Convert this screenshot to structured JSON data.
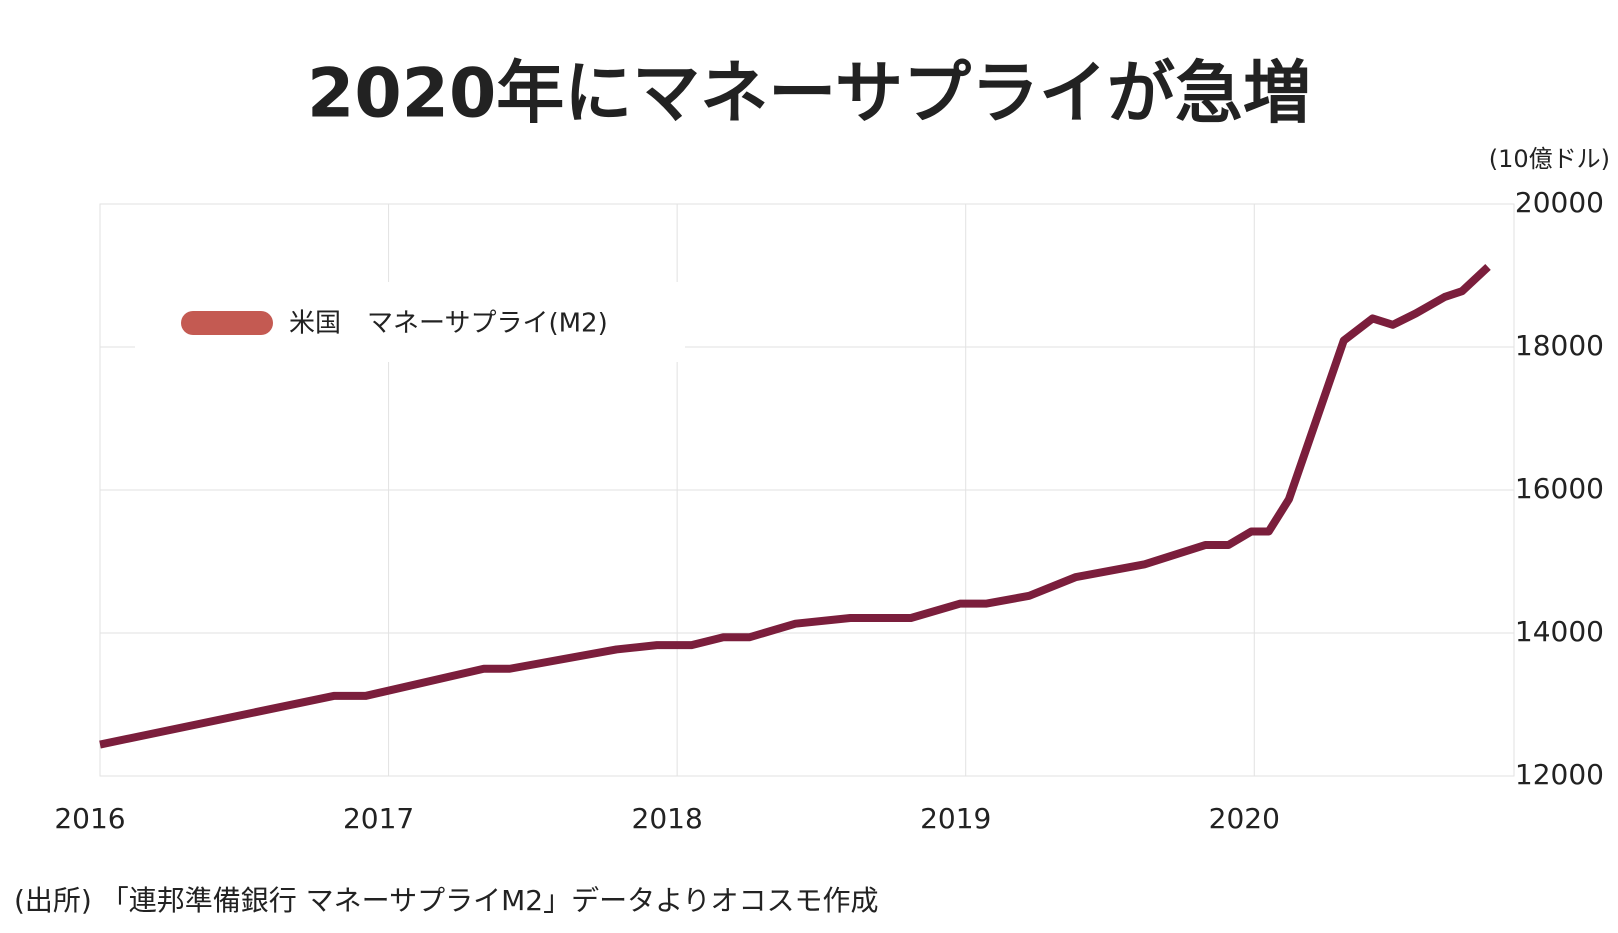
{
  "chart_data": {
    "type": "line",
    "title": "2020年にマネーサプライが急増",
    "y_unit": "(10億ドル)",
    "source": "(出所) 「連邦準備銀行 マネーサプライM2」データよりオコスモ作成",
    "x": [
      2016.0,
      2016.81,
      2016.92,
      2017.33,
      2017.42,
      2017.79,
      2017.93,
      2018.05,
      2018.16,
      2018.25,
      2018.41,
      2018.6,
      2018.81,
      2018.98,
      2019.07,
      2019.22,
      2019.38,
      2019.62,
      2019.83,
      2019.91,
      2019.99,
      2020.05,
      2020.12,
      2020.31,
      2020.41,
      2020.48,
      2020.56,
      2020.66,
      2020.72,
      2020.81
    ],
    "series": [
      {
        "name": "米国　マネーサプライ(M2)",
        "color": "#7b1e3c",
        "legend_color": "#c45a52",
        "values": [
          12440,
          13120,
          13120,
          13500,
          13500,
          13770,
          13830,
          13830,
          13940,
          13940,
          14130,
          14210,
          14210,
          14410,
          14410,
          14520,
          14780,
          14960,
          15230,
          15230,
          15420,
          15420,
          15870,
          18090,
          18400,
          18310,
          18470,
          18700,
          18780,
          19120
        ]
      }
    ],
    "xlim": [
      2016,
      2020.9
    ],
    "xticks": [
      2016,
      2017,
      2018,
      2019,
      2020
    ],
    "ylim": [
      12000,
      20000
    ],
    "yticks": [
      12000,
      14000,
      16000,
      18000,
      20000
    ],
    "grid": true,
    "legend": "upper left",
    "y_axis_side": "right"
  }
}
